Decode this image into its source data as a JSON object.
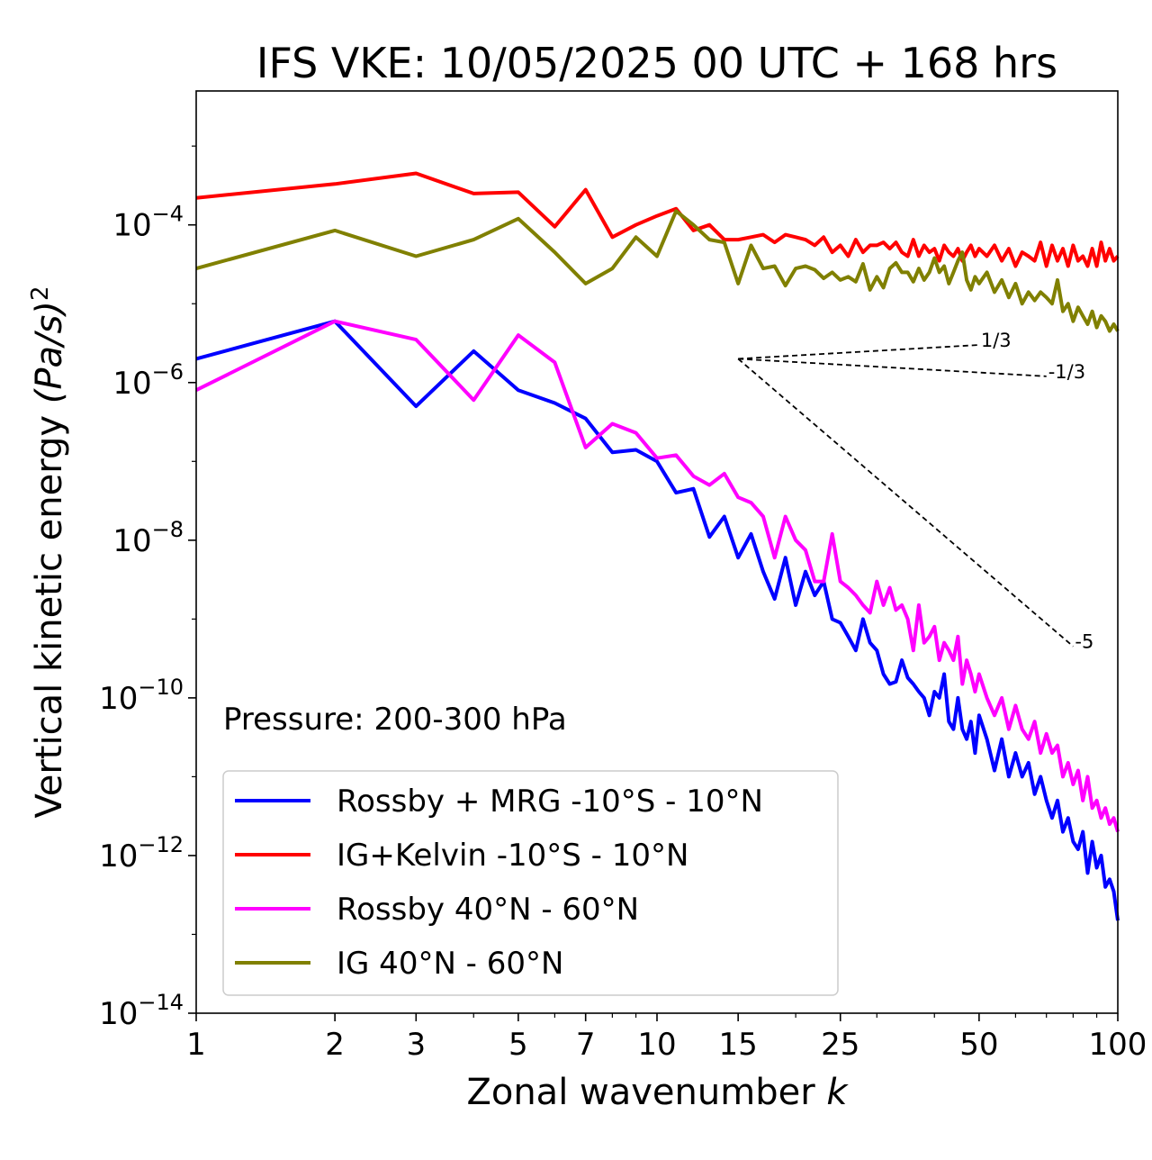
{
  "chart_data": {
    "type": "line",
    "title": "IFS VKE: 10/05/2025 00 UTC + 168 hrs",
    "xlabel": "Zonal wavenumber",
    "xlabel_var": "k",
    "ylabel": "Vertical kinetic energy",
    "ylabel_unit": "(Pa/s)",
    "ylabel_exp": "2",
    "x_scale": "log",
    "y_scale": "log",
    "xlim": [
      1,
      100
    ],
    "ylim": [
      1e-14,
      0.005
    ],
    "x_ticks": [
      1,
      2,
      3,
      5,
      7,
      10,
      15,
      25,
      50,
      100
    ],
    "y_ticks": [
      {
        "value": 1e-14,
        "base": "10",
        "exp": "−14"
      },
      {
        "value": 1e-12,
        "base": "10",
        "exp": "−12"
      },
      {
        "value": 1e-10,
        "base": "10",
        "exp": "−10"
      },
      {
        "value": 1e-08,
        "base": "10",
        "exp": "−8"
      },
      {
        "value": 1e-06,
        "base": "10",
        "exp": "−6"
      },
      {
        "value": 0.0001,
        "base": "10",
        "exp": "−4"
      }
    ],
    "annotation": "Pressure: 200-300 hPa",
    "legend_position": "lower-left",
    "reference_lines": [
      {
        "label": "1/3",
        "x": [
          15,
          50
        ],
        "y": [
          2e-06,
          3e-06
        ]
      },
      {
        "label": "-1/3",
        "x": [
          15,
          70
        ],
        "y": [
          2e-06,
          1.2e-06
        ]
      },
      {
        "label": "-5",
        "x": [
          15,
          80
        ],
        "y": [
          2e-06,
          4.5e-10
        ]
      }
    ],
    "series": [
      {
        "name": "Rossby + MRG -10°S - 10°N",
        "color": "#0000ff",
        "x": [
          1,
          2,
          3,
          4,
          5,
          6,
          7,
          8,
          9,
          10,
          11,
          12,
          13,
          14,
          15,
          16,
          17,
          18,
          19,
          20,
          21,
          22,
          23,
          24,
          25,
          26,
          27,
          28,
          29,
          30,
          31,
          32,
          33,
          34,
          35,
          36,
          37,
          38,
          39,
          40,
          41,
          42,
          43,
          44,
          45,
          46,
          47,
          48,
          49,
          50,
          52,
          54,
          56,
          58,
          60,
          62,
          64,
          66,
          68,
          70,
          72,
          74,
          76,
          78,
          80,
          82,
          84,
          86,
          88,
          90,
          92,
          94,
          96,
          98,
          100
        ],
        "y": [
          2e-06,
          6e-06,
          5e-07,
          2.5e-06,
          8e-07,
          5.5e-07,
          3.5e-07,
          1.3e-07,
          1.4e-07,
          1e-07,
          4e-08,
          4.5e-08,
          1.1e-08,
          2e-08,
          6e-09,
          1.2e-08,
          4e-09,
          1.8e-09,
          6e-09,
          1.5e-09,
          4e-09,
          2e-09,
          3e-09,
          1e-09,
          9e-10,
          6e-10,
          4e-10,
          1e-09,
          5e-10,
          4e-10,
          2e-10,
          1.5e-10,
          1.6e-10,
          3e-10,
          1.8e-10,
          1.5e-10,
          1.2e-10,
          1e-10,
          6e-11,
          1.2e-10,
          1e-10,
          2e-10,
          5e-11,
          4e-11,
          1e-10,
          4e-11,
          3e-11,
          5e-11,
          2e-11,
          6e-11,
          3e-11,
          1.2e-11,
          3e-11,
          1e-11,
          2e-11,
          1e-11,
          1.5e-11,
          6e-12,
          1e-11,
          5e-12,
          3e-12,
          5e-12,
          2e-12,
          3e-12,
          1.5e-12,
          1.2e-12,
          2e-12,
          6e-13,
          1.5e-12,
          7e-13,
          1e-12,
          4e-13,
          5e-13,
          3.5e-13,
          1.5e-13
        ]
      },
      {
        "name": "IG+Kelvin -10°S - 10°N",
        "color": "#ff0000",
        "x": [
          1,
          2,
          3,
          4,
          5,
          6,
          7,
          8,
          9,
          10,
          11,
          12,
          13,
          14,
          15,
          16,
          17,
          18,
          19,
          20,
          21,
          22,
          23,
          24,
          25,
          26,
          27,
          28,
          29,
          30,
          31,
          32,
          33,
          34,
          35,
          36,
          37,
          38,
          39,
          40,
          41,
          42,
          43,
          44,
          45,
          46,
          47,
          48,
          49,
          50,
          52,
          54,
          56,
          58,
          60,
          62,
          64,
          66,
          68,
          70,
          72,
          74,
          76,
          78,
          80,
          82,
          84,
          86,
          88,
          90,
          92,
          94,
          96,
          98,
          100
        ],
        "y": [
          0.00022,
          0.00033,
          0.00045,
          0.00025,
          0.00026,
          9.5e-05,
          0.00028,
          7e-05,
          0.0001,
          0.00013,
          0.00016,
          8.5e-05,
          0.0001,
          6.5e-05,
          6.5e-05,
          7e-05,
          7.5e-05,
          6e-05,
          7.5e-05,
          7e-05,
          6.5e-05,
          5.5e-05,
          7e-05,
          4.5e-05,
          5.5e-05,
          4e-05,
          6.5e-05,
          4.5e-05,
          5.5e-05,
          5.5e-05,
          6e-05,
          5e-05,
          6e-05,
          4.5e-05,
          4e-05,
          6.5e-05,
          4e-05,
          5.5e-05,
          4.5e-05,
          5e-05,
          3.5e-05,
          5.5e-05,
          4.5e-05,
          4e-05,
          5e-05,
          3.5e-05,
          4.5e-05,
          5.5e-05,
          4e-05,
          5e-05,
          4e-05,
          5.5e-05,
          3.5e-05,
          5e-05,
          3e-05,
          4.5e-05,
          4e-05,
          3.5e-05,
          6e-05,
          3e-05,
          5.5e-05,
          3.5e-05,
          5e-05,
          3e-05,
          5.5e-05,
          3.5e-05,
          4e-05,
          3e-05,
          5e-05,
          3e-05,
          6e-05,
          3.5e-05,
          5e-05,
          3.5e-05,
          4e-05
        ]
      },
      {
        "name": "Rossby 40°N - 60°N",
        "color": "#ff00ff",
        "x": [
          1,
          2,
          3,
          4,
          5,
          6,
          7,
          8,
          9,
          10,
          11,
          12,
          13,
          14,
          15,
          16,
          17,
          18,
          19,
          20,
          21,
          22,
          23,
          24,
          25,
          26,
          27,
          28,
          29,
          30,
          31,
          32,
          33,
          34,
          35,
          36,
          37,
          38,
          39,
          40,
          41,
          42,
          43,
          44,
          45,
          46,
          47,
          48,
          49,
          50,
          52,
          54,
          56,
          58,
          60,
          62,
          64,
          66,
          68,
          70,
          72,
          74,
          76,
          78,
          80,
          82,
          84,
          86,
          88,
          90,
          92,
          94,
          96,
          98,
          100
        ],
        "y": [
          8e-07,
          6e-06,
          3.5e-06,
          6e-07,
          4e-06,
          1.8e-06,
          1.5e-07,
          3e-07,
          2.3e-07,
          1.1e-07,
          1.2e-07,
          6.5e-08,
          5e-08,
          7e-08,
          3.5e-08,
          3e-08,
          2e-08,
          6e-09,
          2e-08,
          1e-08,
          7.5e-09,
          3e-09,
          3e-09,
          1.2e-08,
          3e-09,
          2.5e-09,
          2e-09,
          1.5e-09,
          1.2e-09,
          3e-09,
          1.5e-09,
          2.5e-09,
          1.3e-09,
          1.5e-09,
          1e-09,
          4e-10,
          1.5e-09,
          5e-10,
          6e-10,
          8e-10,
          3e-10,
          5e-10,
          4e-10,
          3e-10,
          6e-10,
          1.5e-10,
          3e-10,
          2e-10,
          1.2e-10,
          2e-10,
          1e-10,
          6e-11,
          1e-10,
          4e-11,
          8e-11,
          4e-11,
          3e-11,
          5e-11,
          2e-11,
          3.5e-11,
          2e-11,
          2.5e-11,
          1e-11,
          1.5e-11,
          8e-12,
          1.2e-11,
          5e-12,
          1e-11,
          4e-12,
          5e-12,
          3e-12,
          4e-12,
          2.5e-12,
          3e-12,
          2e-12
        ]
      },
      {
        "name": "IG 40°N - 60°N",
        "color": "#808000",
        "x": [
          1,
          2,
          3,
          4,
          5,
          6,
          7,
          8,
          9,
          10,
          11,
          12,
          13,
          14,
          15,
          16,
          17,
          18,
          19,
          20,
          21,
          22,
          23,
          24,
          25,
          26,
          27,
          28,
          29,
          30,
          31,
          32,
          33,
          34,
          35,
          36,
          37,
          38,
          39,
          40,
          41,
          42,
          43,
          44,
          45,
          46,
          47,
          48,
          49,
          50,
          52,
          54,
          56,
          58,
          60,
          62,
          64,
          66,
          68,
          70,
          72,
          74,
          76,
          78,
          80,
          82,
          84,
          86,
          88,
          90,
          92,
          94,
          96,
          98,
          100
        ],
        "y": [
          2.8e-05,
          8.5e-05,
          4e-05,
          6.5e-05,
          0.00012,
          4.5e-05,
          1.8e-05,
          2.8e-05,
          7e-05,
          4e-05,
          0.00015,
          0.0001,
          6.5e-05,
          6e-05,
          1.8e-05,
          5.5e-05,
          2.8e-05,
          3e-05,
          1.7e-05,
          2.8e-05,
          3e-05,
          2.7e-05,
          2.1e-05,
          2.5e-05,
          2e-05,
          2.2e-05,
          1.9e-05,
          3.2e-05,
          1.5e-05,
          2.2e-05,
          1.6e-05,
          2.8e-05,
          3.3e-05,
          2.5e-05,
          2.5e-05,
          1.9e-05,
          2.8e-05,
          2e-05,
          2.5e-05,
          3.8e-05,
          2.5e-05,
          3e-05,
          1.8e-05,
          2.5e-05,
          3.5e-05,
          4.5e-05,
          2e-05,
          1.5e-05,
          2.2e-05,
          1.8e-05,
          2.5e-05,
          1.4e-05,
          2e-05,
          1.2e-05,
          1.8e-05,
          1e-05,
          1.4e-05,
          1.1e-05,
          1.4e-05,
          1.2e-05,
          1e-05,
          2e-05,
          8e-06,
          1e-05,
          6e-06,
          9e-06,
          7e-06,
          5.5e-06,
          8e-06,
          5e-06,
          7e-06,
          6e-06,
          4.5e-06,
          5.5e-06,
          4.5e-06
        ]
      }
    ]
  }
}
